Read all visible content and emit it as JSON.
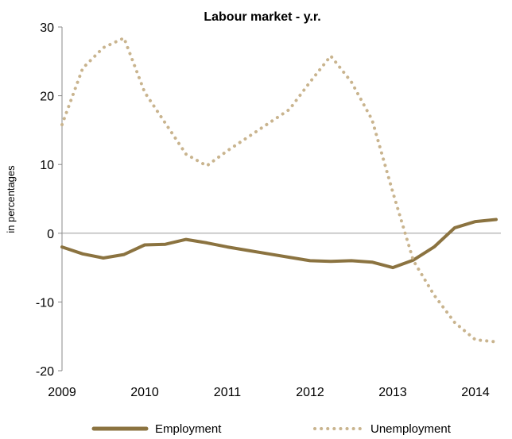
{
  "chart_data": {
    "type": "line",
    "title": "Labour market - y.r.",
    "xlabel": "",
    "ylabel": "in percentages",
    "x": [
      2009.0,
      2009.25,
      2009.5,
      2009.75,
      2010.0,
      2010.25,
      2010.5,
      2010.75,
      2011.0,
      2011.25,
      2011.5,
      2011.75,
      2012.0,
      2012.25,
      2012.5,
      2012.75,
      2013.0,
      2013.25,
      2013.5,
      2013.75,
      2014.0,
      2014.25
    ],
    "xticks": [
      "2009",
      "2010",
      "2011",
      "2012",
      "2013",
      "2014"
    ],
    "xtick_values": [
      2009,
      2010,
      2011,
      2012,
      2013,
      2014
    ],
    "xlim": [
      2009,
      2014.25
    ],
    "ylim": [
      -20,
      30
    ],
    "yticks": [
      -20,
      -10,
      0,
      10,
      20,
      30
    ],
    "grid": false,
    "legend_position": "bottom",
    "series": [
      {
        "name": "Employment",
        "style": "solid",
        "color": "#8B7340",
        "values": [
          -2.0,
          -3.0,
          -3.6,
          -3.1,
          -1.7,
          -1.6,
          -0.9,
          -1.4,
          -2.0,
          -2.5,
          -3.0,
          -3.5,
          -4.0,
          -4.1,
          -4.0,
          -4.2,
          -5.0,
          -3.9,
          -2.0,
          0.8,
          1.7,
          2.0
        ]
      },
      {
        "name": "Unemployment",
        "style": "dotted",
        "color": "#C9B48E",
        "values": [
          15.8,
          24.0,
          27.0,
          28.4,
          20.5,
          16.0,
          11.5,
          9.8,
          12.0,
          14.0,
          16.0,
          18.0,
          22.0,
          25.8,
          22.0,
          16.5,
          6.0,
          -4.0,
          -9.0,
          -13.0,
          -15.5,
          -15.8
        ]
      }
    ]
  }
}
